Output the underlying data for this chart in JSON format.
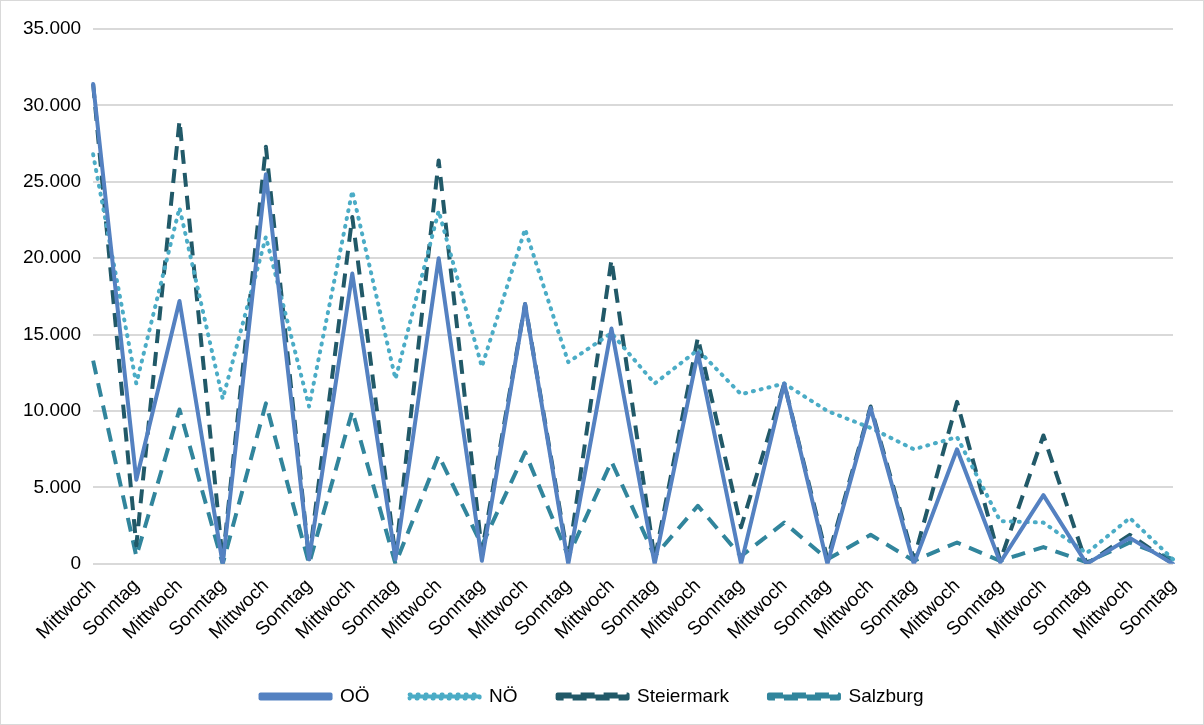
{
  "chart_data": {
    "type": "line",
    "categories": [
      "Mittwoch",
      "Sonntag",
      "Mittwoch",
      "Sonntag",
      "Mittwoch",
      "Sonntag",
      "Mittwoch",
      "Sonntag",
      "Mittwoch",
      "Sonntag",
      "Mittwoch",
      "Sonntag",
      "Mittwoch",
      "Sonntag",
      "Mittwoch",
      "Sonntag",
      "Mittwoch",
      "Sonntag",
      "Mittwoch",
      "Sonntag",
      "Mittwoch",
      "Sonntag",
      "Mittwoch",
      "Sonntag",
      "Mittwoch",
      "Sonntag"
    ],
    "series": [
      {
        "name": "OÖ",
        "color": "#5481c1",
        "line_style": "solid",
        "values": [
          31400,
          5500,
          17200,
          0,
          25500,
          300,
          19000,
          300,
          20000,
          200,
          17000,
          0,
          15400,
          0,
          13800,
          0,
          11800,
          0,
          10200,
          0,
          7500,
          100,
          4500,
          0,
          1700,
          0
        ]
      },
      {
        "name": "NÖ",
        "color": "#4bacc6",
        "line_style": "dotted",
        "values": [
          26800,
          11800,
          23300,
          10800,
          21400,
          10300,
          24400,
          12100,
          23100,
          12900,
          21900,
          13200,
          15100,
          11800,
          14000,
          11100,
          11800,
          10000,
          8900,
          7500,
          8300,
          2800,
          2700,
          700,
          3000,
          300
        ]
      },
      {
        "name": "Steiermark",
        "color": "#215968",
        "line_style": "dashed",
        "values": [
          31400,
          1200,
          29000,
          200,
          27300,
          300,
          22700,
          500,
          26400,
          800,
          17000,
          300,
          19900,
          300,
          14800,
          2400,
          11800,
          300,
          10300,
          300,
          10600,
          200,
          8400,
          0,
          1900,
          0
        ]
      },
      {
        "name": "Salzburg",
        "color": "#31859c",
        "line_style": "dashed",
        "values": [
          13300,
          500,
          10100,
          0,
          10500,
          0,
          10000,
          0,
          7100,
          1200,
          7300,
          500,
          6700,
          500,
          3800,
          500,
          2700,
          300,
          1900,
          200,
          1400,
          200,
          1100,
          100,
          1400,
          300
        ]
      }
    ],
    "ylim": [
      0,
      35000
    ],
    "yticks": [
      {
        "value": 0,
        "label": "0"
      },
      {
        "value": 5000,
        "label": "5.000"
      },
      {
        "value": 10000,
        "label": "10.000"
      },
      {
        "value": 15000,
        "label": "15.000"
      },
      {
        "value": 20000,
        "label": "20.000"
      },
      {
        "value": 25000,
        "label": "25.000"
      },
      {
        "value": 30000,
        "label": "30.000"
      },
      {
        "value": 35000,
        "label": "35.000"
      }
    ],
    "grid": "y",
    "legend": "bottom",
    "marker": "none"
  }
}
